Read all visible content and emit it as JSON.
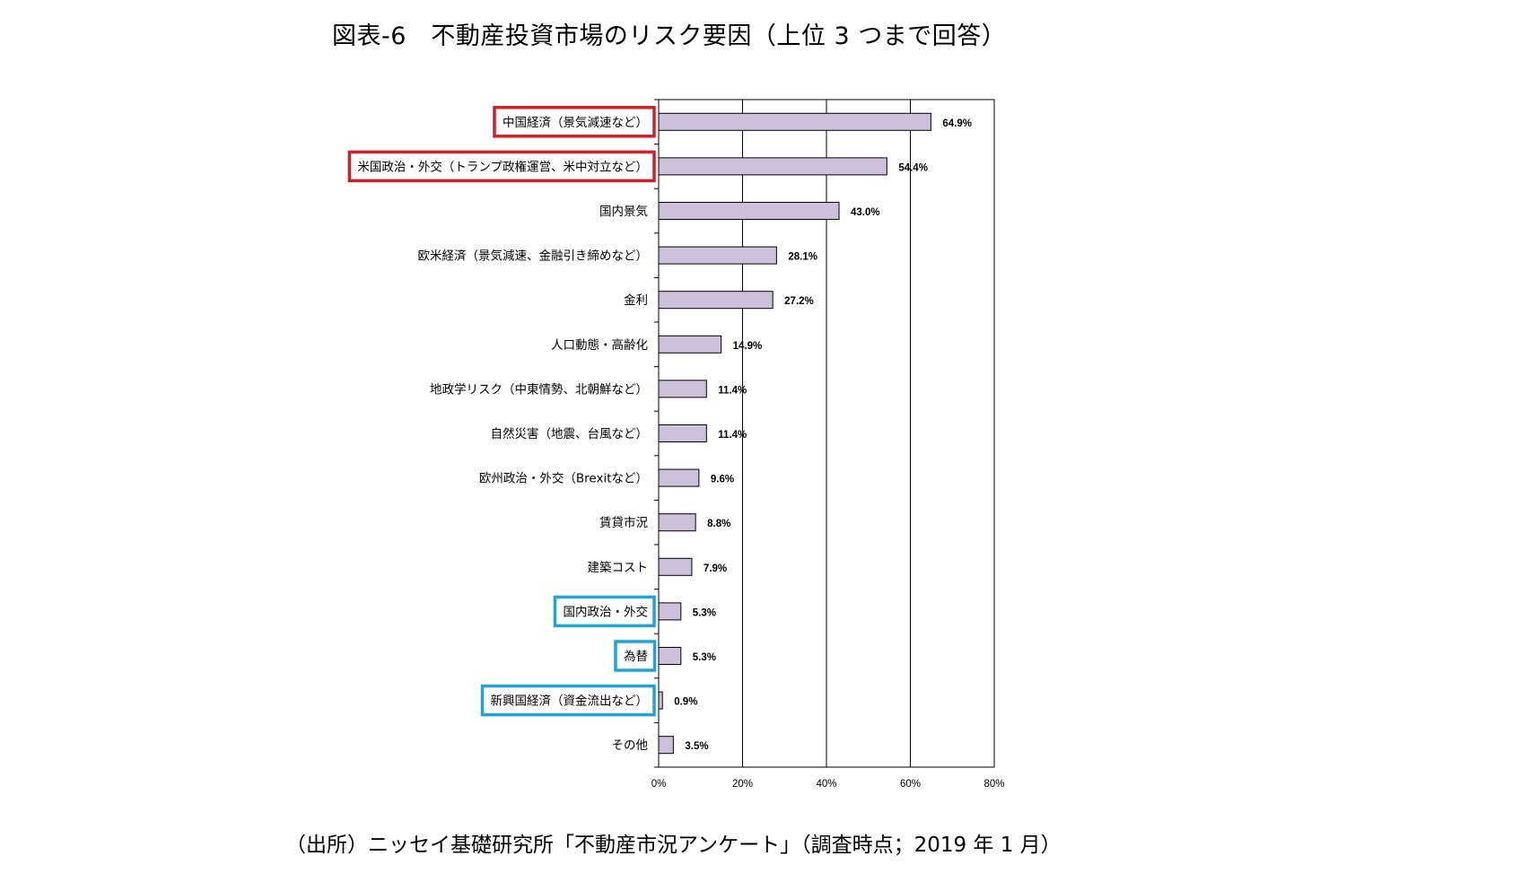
{
  "title": "図表-6　不動産投資市場のリスク要因（上位 3 つまで回答）",
  "source": "（出所）ニッセイ基礎研究所「不動産市況アンケート」（調査時点；2019 年 1 月）",
  "colors": {
    "bar_fill": "#ccc0da",
    "bar_stroke": "#000000",
    "highlight_red": "#d01f28",
    "highlight_blue": "#1fa4d6"
  },
  "chart_data": {
    "type": "bar",
    "orientation": "horizontal",
    "title": "",
    "xlabel": "",
    "ylabel": "",
    "xlim": [
      0,
      80
    ],
    "x_ticks": [
      0,
      20,
      40,
      60,
      80
    ],
    "x_tick_labels": [
      "0%",
      "20%",
      "40%",
      "60%",
      "80%"
    ],
    "grid": "vertical",
    "categories": [
      "中国経済（景気減速など）",
      "米国政治・外交（トランプ政権運営、米中対立など）",
      "国内景気",
      "欧米経済（景気減速、金融引き締めなど）",
      "金利",
      "人口動態・高齢化",
      "地政学リスク（中東情勢、北朝鮮など）",
      "自然災害（地震、台風など）",
      "欧州政治・外交（Brexitなど）",
      "賃貸市況",
      "建築コスト",
      "国内政治・外交",
      "為替",
      "新興国経済（資金流出など）",
      "その他"
    ],
    "values": [
      64.9,
      54.4,
      43.0,
      28.1,
      27.2,
      14.9,
      11.4,
      11.4,
      9.6,
      8.8,
      7.9,
      5.3,
      5.3,
      0.9,
      3.5
    ],
    "value_labels": [
      "64.9%",
      "54.4%",
      "43.0%",
      "28.1%",
      "27.2%",
      "14.9%",
      "11.4%",
      "11.4%",
      "9.6%",
      "8.8%",
      "7.9%",
      "5.3%",
      "5.3%",
      "0.9%",
      "3.5%"
    ],
    "highlights": {
      "red": [
        0,
        1
      ],
      "blue": [
        11,
        12,
        13
      ]
    }
  }
}
